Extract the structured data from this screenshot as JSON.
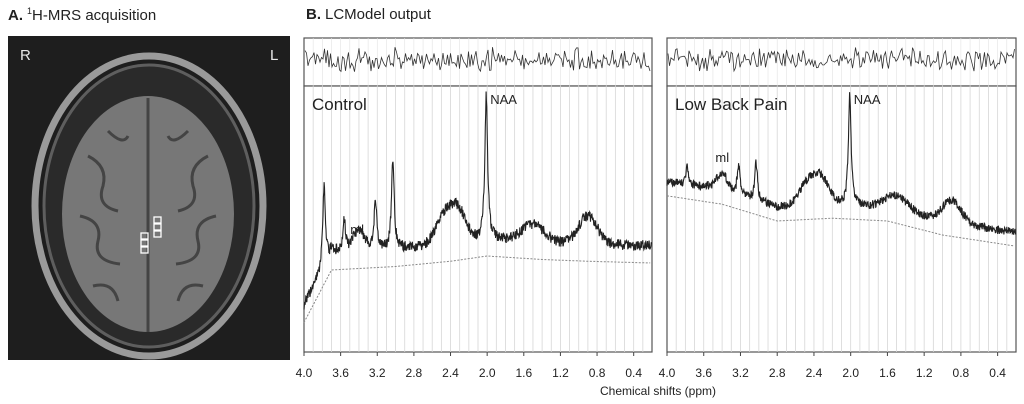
{
  "panelA": {
    "letter": "A.",
    "sup": "1",
    "title": "H-MRS acquisition",
    "side_left": "R",
    "side_right": "L"
  },
  "panelB": {
    "letter": "B.",
    "title": "LCModel output"
  },
  "chart_data": [
    {
      "type": "line",
      "title": "Control",
      "xlabel": "Chemical shifts (ppm)",
      "xlim": [
        4.0,
        0.2
      ],
      "x_ticks": [
        "4.0",
        "3.6",
        "3.2",
        "2.8",
        "2.4",
        "2.0",
        "1.6",
        "1.2",
        "0.8",
        "0.4"
      ],
      "grid": true,
      "annotations": [
        {
          "label": "NAA",
          "x": 2.01
        },
        {
          "label": "ml",
          "x": 3.56
        }
      ],
      "peaks": [
        {
          "x": 3.78,
          "y": 0.47
        },
        {
          "x": 3.56,
          "y": 0.28
        },
        {
          "x": 3.22,
          "y": 0.4
        },
        {
          "x": 3.03,
          "y": 0.62
        },
        {
          "x": 2.01,
          "y": 1.0
        }
      ],
      "baseline": [
        {
          "x": 4.0,
          "y": -0.3
        },
        {
          "x": 3.7,
          "y": 0.0
        },
        {
          "x": 3.0,
          "y": 0.02
        },
        {
          "x": 2.4,
          "y": 0.05
        },
        {
          "x": 2.0,
          "y": 0.08
        },
        {
          "x": 1.4,
          "y": 0.06
        },
        {
          "x": 0.9,
          "y": 0.05
        },
        {
          "x": 0.2,
          "y": 0.04
        }
      ]
    },
    {
      "type": "line",
      "title": "Low Back Pain",
      "xlabel": "Chemical shifts (ppm)",
      "xlim": [
        4.0,
        0.2
      ],
      "x_ticks": [
        "4.0",
        "3.6",
        "3.2",
        "2.8",
        "2.4",
        "2.0",
        "1.6",
        "1.2",
        "0.8",
        "0.4"
      ],
      "grid": true,
      "annotations": [
        {
          "label": "NAA",
          "x": 2.01
        },
        {
          "label": "ml",
          "x": 3.56
        }
      ],
      "peaks": [
        {
          "x": 3.78,
          "y": 0.48
        },
        {
          "x": 3.56,
          "y": 0.35
        },
        {
          "x": 3.22,
          "y": 0.5
        },
        {
          "x": 3.03,
          "y": 0.52
        },
        {
          "x": 2.01,
          "y": 1.0
        }
      ],
      "baseline": [
        {
          "x": 4.0,
          "y": 0.28
        },
        {
          "x": 3.4,
          "y": 0.22
        },
        {
          "x": 2.8,
          "y": 0.1
        },
        {
          "x": 2.2,
          "y": 0.12
        },
        {
          "x": 1.6,
          "y": 0.1
        },
        {
          "x": 1.0,
          "y": 0.0
        },
        {
          "x": 0.2,
          "y": -0.08
        }
      ]
    }
  ]
}
